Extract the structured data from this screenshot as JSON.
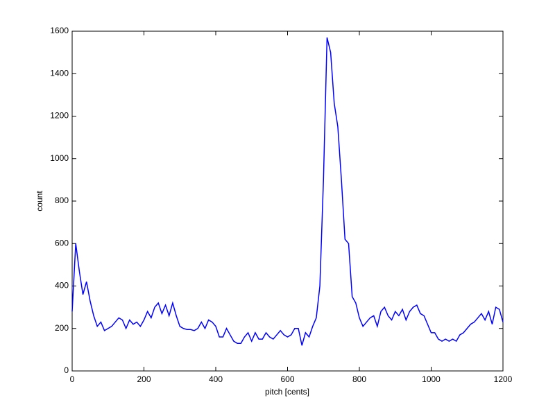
{
  "chart_data": {
    "type": "line",
    "x_label": "pitch [cents]",
    "y_label": "count",
    "x": [
      0,
      10,
      20,
      30,
      40,
      50,
      60,
      70,
      80,
      90,
      100,
      110,
      120,
      130,
      140,
      150,
      160,
      170,
      180,
      190,
      200,
      210,
      220,
      230,
      240,
      250,
      260,
      270,
      280,
      290,
      300,
      310,
      320,
      330,
      340,
      350,
      360,
      370,
      380,
      390,
      400,
      410,
      420,
      430,
      440,
      450,
      460,
      470,
      480,
      490,
      500,
      510,
      520,
      530,
      540,
      550,
      560,
      570,
      580,
      590,
      600,
      610,
      620,
      630,
      640,
      650,
      660,
      670,
      680,
      690,
      700,
      710,
      720,
      730,
      740,
      750,
      760,
      770,
      780,
      790,
      800,
      810,
      820,
      830,
      840,
      850,
      860,
      870,
      880,
      890,
      900,
      910,
      920,
      930,
      940,
      950,
      960,
      970,
      980,
      990,
      1000,
      1010,
      1020,
      1030,
      1040,
      1050,
      1060,
      1070,
      1080,
      1090,
      1100,
      1110,
      1120,
      1130,
      1140,
      1150,
      1160,
      1170,
      1180,
      1190,
      1200
    ],
    "series": [
      {
        "color": "#0000ff",
        "values": [
          280,
          600,
          470,
          360,
          420,
          330,
          260,
          210,
          230,
          190,
          200,
          210,
          230,
          250,
          240,
          200,
          240,
          220,
          230,
          210,
          240,
          280,
          250,
          300,
          320,
          270,
          310,
          260,
          320,
          260,
          210,
          200,
          195,
          195,
          190,
          200,
          230,
          200,
          240,
          230,
          210,
          160,
          160,
          200,
          170,
          140,
          130,
          130,
          160,
          180,
          140,
          180,
          150,
          150,
          180,
          160,
          150,
          170,
          190,
          170,
          160,
          170,
          200,
          200,
          120,
          180,
          160,
          210,
          250,
          400,
          900,
          1570,
          1500,
          1260,
          1150,
          900,
          620,
          600,
          350,
          320,
          250,
          210,
          230,
          250,
          260,
          210,
          280,
          300,
          260,
          240,
          280,
          260,
          290,
          240,
          280,
          300,
          310,
          270,
          260,
          220,
          180,
          180,
          150,
          140,
          150,
          140,
          150,
          140,
          170,
          180,
          200,
          220,
          230,
          250,
          270,
          240,
          280,
          220,
          300,
          290,
          230
        ]
      }
    ],
    "xlim": [
      0,
      1200
    ],
    "ylim": [
      0,
      1600
    ],
    "xticks": [
      0,
      200,
      400,
      600,
      800,
      1000,
      1200
    ],
    "yticks": [
      0,
      200,
      400,
      600,
      800,
      1000,
      1200,
      1400,
      1600
    ],
    "grid": false
  }
}
